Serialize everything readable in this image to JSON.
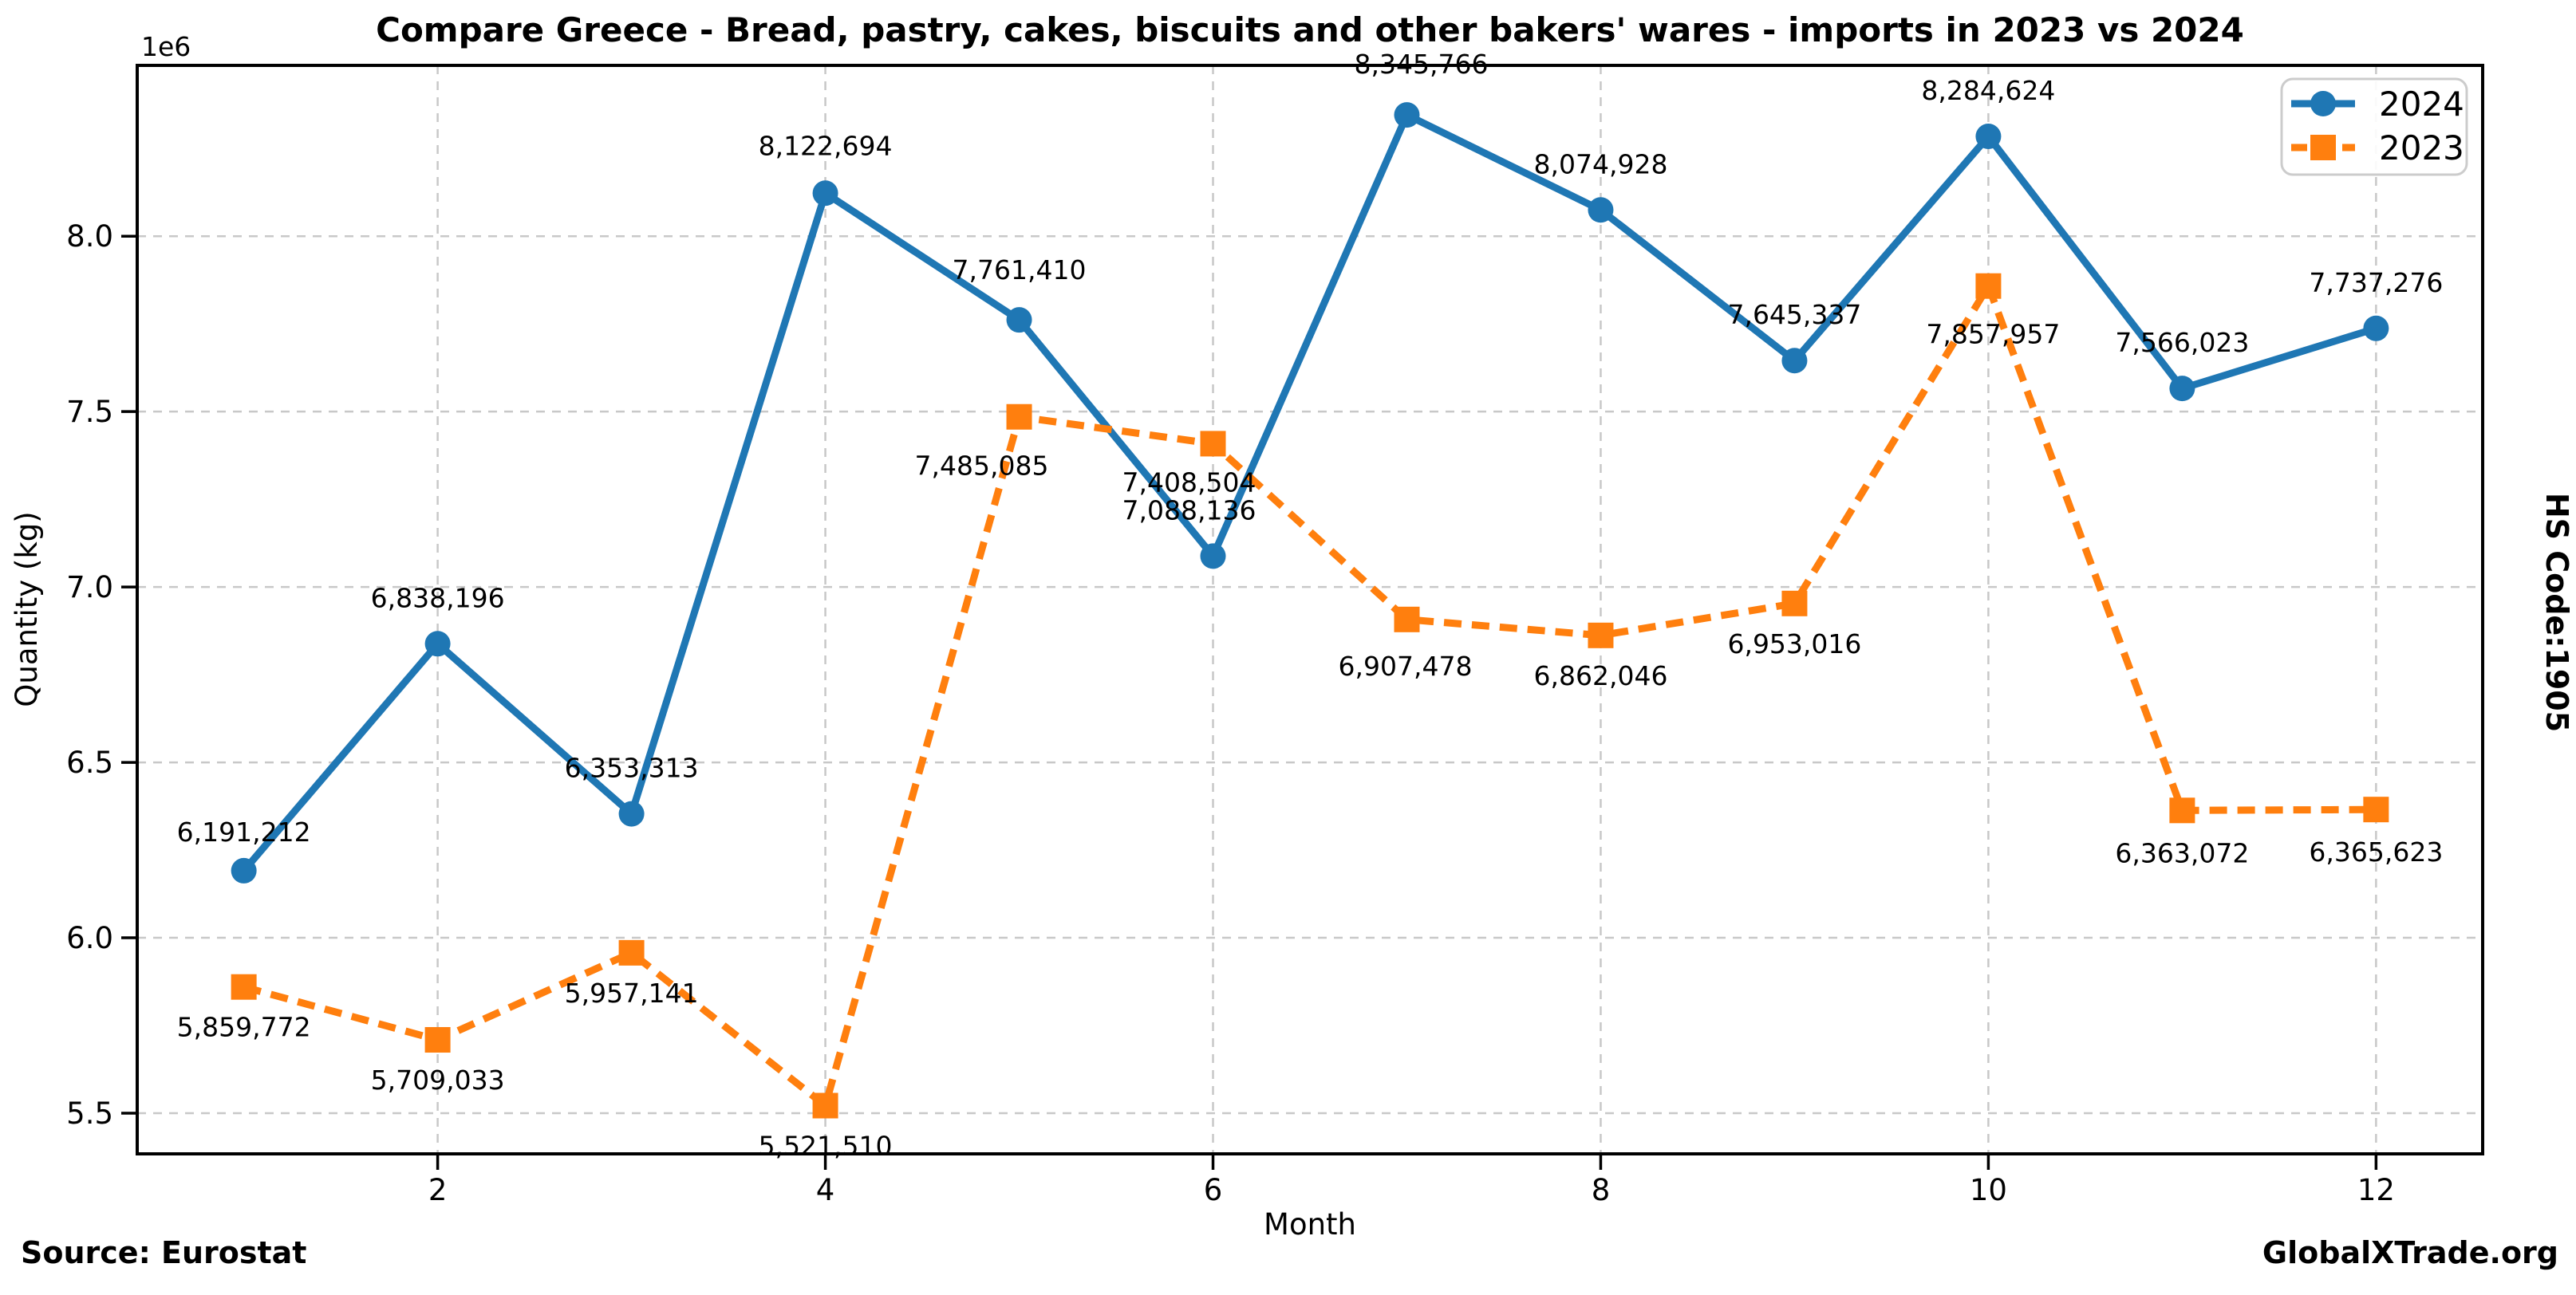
{
  "chart_data": {
    "type": "line",
    "title": "Compare Greece - Bread, pastry, cakes, biscuits and other bakers' wares - imports in 2023 vs 2024",
    "xlabel": "Month",
    "ylabel": "Quantity (kg)",
    "y_axis_multiplier_label": "1e6",
    "hs_code_label": "HS Code:1905",
    "x": [
      1,
      2,
      3,
      4,
      5,
      6,
      7,
      8,
      9,
      10,
      11,
      12
    ],
    "xticks": [
      2,
      4,
      6,
      8,
      10,
      12
    ],
    "yticks": [
      5500000,
      6000000,
      6500000,
      7000000,
      7500000,
      8000000
    ],
    "ytick_labels": [
      "5.5",
      "6.0",
      "6.5",
      "7.0",
      "7.5",
      "8.0"
    ],
    "xlim": [
      0.45,
      12.55
    ],
    "ylim": [
      5384000,
      8487000
    ],
    "grid": true,
    "legend_position": "upper right",
    "series": [
      {
        "name": "2024",
        "color": "#1f77b4",
        "line_style": "solid",
        "marker": "circle",
        "values": [
          6191212,
          6838196,
          6353313,
          8122694,
          7761410,
          7088136,
          8345766,
          8074928,
          7645337,
          8284624,
          7566023,
          7737276
        ],
        "labels": [
          "6,191,212",
          "6,838,196",
          "6,353,313",
          "8,122,694",
          "7,761,410",
          "7,088,136",
          "8,345,766",
          "8,074,928",
          "7,645,337",
          "8,284,624",
          "7,566,023",
          "7,737,276"
        ]
      },
      {
        "name": "2023",
        "color": "#ff7f0e",
        "line_style": "dashed",
        "marker": "square",
        "values": [
          5859772,
          5709033,
          5957141,
          5521510,
          7485085,
          7408504,
          6907478,
          6862046,
          6953016,
          7857957,
          6363072,
          6365623
        ],
        "labels": [
          "5,859,772",
          "5,709,033",
          "5,957,141",
          "5,521,510",
          "7,485,085",
          "7,408,504",
          "6,907,478",
          "6,862,046",
          "6,953,016",
          "7,857,957",
          "6,363,072",
          "6,365,623"
        ]
      }
    ]
  },
  "footer": {
    "source": "Source: Eurostat",
    "brand": "GlobalXTrade.org"
  }
}
